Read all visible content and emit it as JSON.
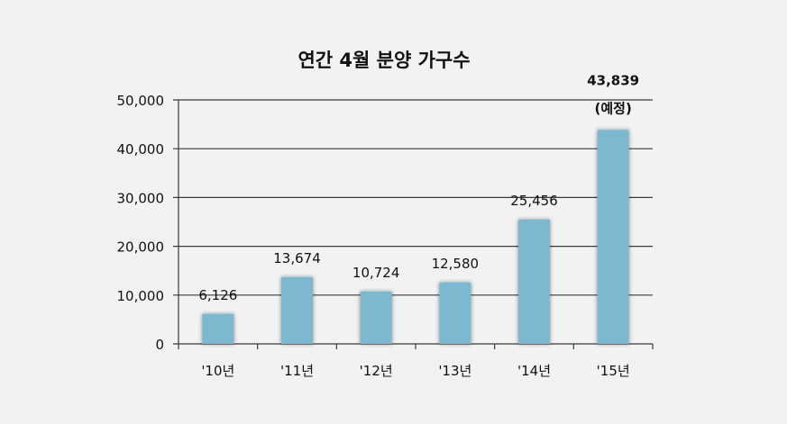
{
  "chart_data": {
    "type": "bar",
    "title": "연간 4월 분양 가구수",
    "categories": [
      "'10년",
      "'11년",
      "'12년",
      "'13년",
      "'14년",
      "'15년"
    ],
    "values": [
      6126,
      13674,
      10724,
      12580,
      25456,
      43839
    ],
    "value_labels": [
      "6,126",
      "13,674",
      "10,724",
      "12,580",
      "25,456",
      "43,839"
    ],
    "value_notes": [
      "",
      "",
      "",
      "",
      "",
      "(예정)"
    ],
    "ylim": [
      0,
      50000
    ],
    "yticks": [
      0,
      10000,
      20000,
      30000,
      40000,
      50000
    ],
    "ytick_labels": [
      "0",
      "10,000",
      "20,000",
      "30,000",
      "40,000",
      "50,000"
    ],
    "xlabel": "",
    "ylabel": "",
    "grid": true,
    "legend": "none",
    "colors": {
      "bar": "#7bb8d0",
      "bar_shadow": "#b0b0b0",
      "grid": "#3a3a3a",
      "background": "#f2f2f2",
      "text": "#111111"
    }
  }
}
